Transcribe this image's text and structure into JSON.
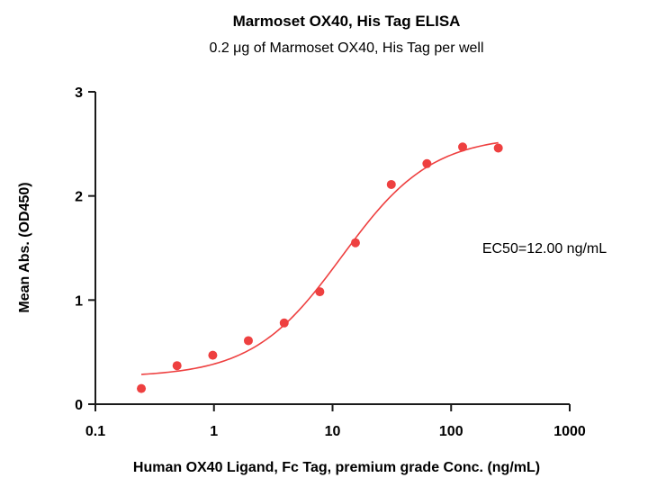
{
  "chart_data": {
    "type": "scatter",
    "title": "Marmoset OX40, His Tag ELISA",
    "subtitle": "0.2 μg of Marmoset OX40, His Tag per well",
    "xlabel": "Human OX40 Ligand, Fc Tag, premium grade Conc. (ng/mL)",
    "ylabel": "Mean Abs. (OD450)",
    "x_scale": "log",
    "xlim": [
      0.1,
      1000
    ],
    "ylim": [
      0,
      3
    ],
    "x_ticks": [
      0.1,
      1,
      10,
      100,
      1000
    ],
    "x_tick_labels": [
      "0.1",
      "1",
      "10",
      "100",
      "1000"
    ],
    "y_ticks": [
      0,
      1,
      2,
      3
    ],
    "y_tick_labels": [
      "0",
      "1",
      "2",
      "3"
    ],
    "grid": false,
    "series": [
      {
        "x": [
          0.244,
          0.488,
          0.977,
          1.95,
          3.91,
          7.81,
          15.6,
          31.3,
          62.5,
          125,
          250
        ],
        "y": [
          0.15,
          0.37,
          0.47,
          0.61,
          0.78,
          1.08,
          1.55,
          2.11,
          2.31,
          2.47,
          2.46
        ],
        "color": "#ee4040"
      }
    ],
    "fit": {
      "model": "4PL",
      "bottom": 0.26,
      "top": 2.58,
      "ec50": 12.0,
      "hill": 1.15,
      "color": "#ee4040"
    },
    "annotations": [
      {
        "text": "EC50=12.00 ng/mL"
      }
    ]
  }
}
